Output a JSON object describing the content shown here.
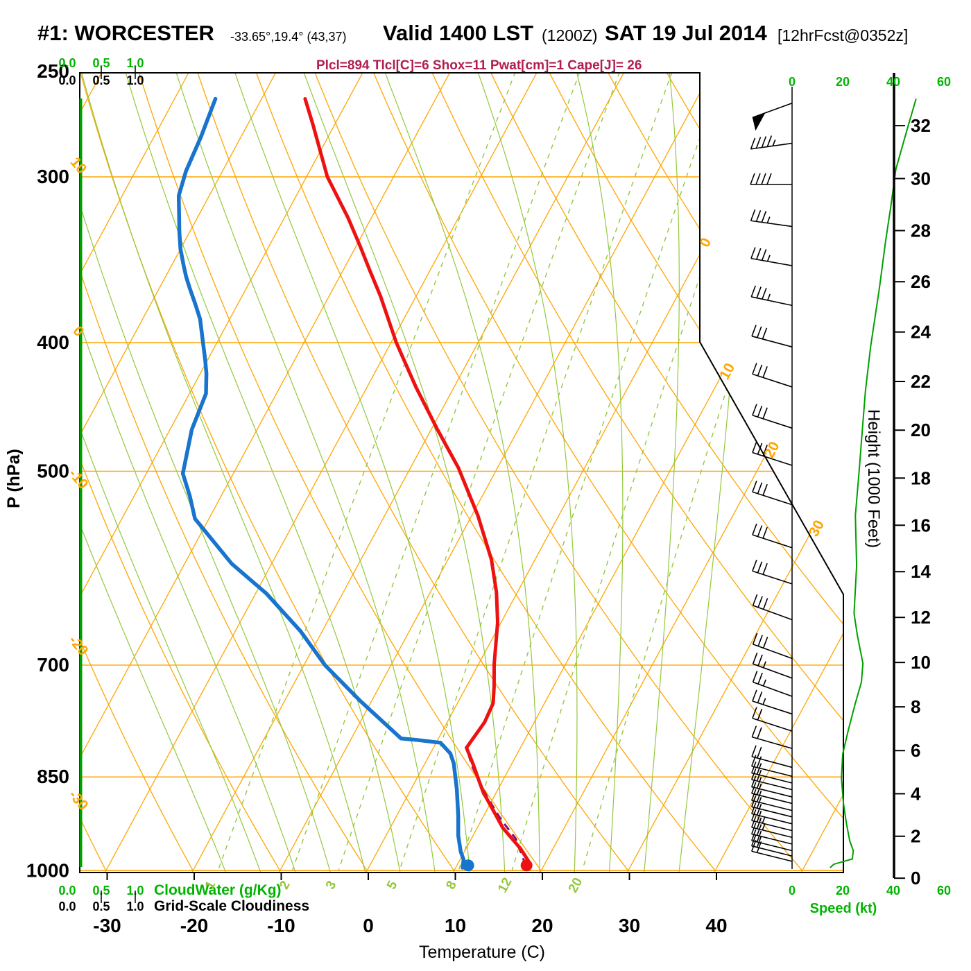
{
  "header": {
    "station": "#1: WORCESTER",
    "coords": "-33.65°,19.4° (43,37)",
    "valid": "Valid 1400 LST",
    "zulu": "(1200Z)",
    "date": "SAT 19 Jul 2014",
    "fcst": "[12hrFcst@0352z]",
    "params": "Plcl=894 Tlcl[C]=6 Shox=11 Pwat[cm]=1 Cape[J]= 26"
  },
  "axes": {
    "pressure": {
      "label": "P (hPa)",
      "ticks": [
        250,
        300,
        400,
        500,
        700,
        850,
        1000
      ]
    },
    "temperature": {
      "label": "Temperature (C)",
      "ticks": [
        -30,
        -20,
        -10,
        0,
        10,
        20,
        30,
        40
      ]
    },
    "height": {
      "label": "Height (1000 Feet)",
      "ticks": [
        0,
        2,
        4,
        6,
        8,
        10,
        12,
        14,
        16,
        18,
        20,
        22,
        24,
        26,
        28,
        30,
        32
      ]
    },
    "speed": {
      "label": "Speed (kt)",
      "ticks": [
        0,
        20,
        40,
        60
      ]
    },
    "cloudwater": {
      "label": "CloudWater (g/Kg)",
      "ticks": [
        "0.0",
        "0.5",
        "1.0"
      ]
    },
    "cloudiness": {
      "label": "Grid-Scale Cloudiness",
      "ticks": [
        "0.0",
        "0.5",
        "1.0"
      ]
    }
  },
  "chart_data": {
    "type": "line",
    "variant": "skew-t-log-p-sounding",
    "pressure_range_hpa": [
      1005,
      250
    ],
    "isotherm_step_c": 10,
    "isotherm_edge_labels": [
      0,
      10,
      20,
      30
    ],
    "dry_adiabat_edge_labels": [
      10,
      0,
      -10,
      -20,
      -30
    ],
    "mixing_ratio_lines_gkg": [
      1,
      2,
      3,
      5,
      8,
      12,
      20
    ],
    "temperature_profile_pT": [
      [
        262,
        -55.0
      ],
      [
        274,
        -52.5
      ],
      [
        300,
        -47.6
      ],
      [
        322,
        -42.7
      ],
      [
        338,
        -39.6
      ],
      [
        353,
        -36.9
      ],
      [
        369,
        -34.1
      ],
      [
        400,
        -29.4
      ],
      [
        432,
        -24.4
      ],
      [
        465,
        -19.3
      ],
      [
        497,
        -14.5
      ],
      [
        540,
        -9.3
      ],
      [
        583,
        -5.0
      ],
      [
        617,
        -2.4
      ],
      [
        650,
        -0.4
      ],
      [
        699,
        1.8
      ],
      [
        727,
        3.2
      ],
      [
        748,
        4.1
      ],
      [
        773,
        4.3
      ],
      [
        808,
        3.8
      ],
      [
        833,
        5.7
      ],
      [
        853,
        7.1
      ],
      [
        873,
        8.5
      ],
      [
        900,
        10.7
      ],
      [
        928,
        12.9
      ],
      [
        963,
        16.3
      ],
      [
        983,
        17.9
      ],
      [
        995,
        18.0
      ]
    ],
    "dewpoint_profile_pTd": [
      [
        262,
        -65.3
      ],
      [
        280,
        -64.6
      ],
      [
        297,
        -64.2
      ],
      [
        310,
        -63.5
      ],
      [
        322,
        -62.1
      ],
      [
        330,
        -61.2
      ],
      [
        340,
        -60.0
      ],
      [
        350,
        -58.6
      ],
      [
        357,
        -57.6
      ],
      [
        364,
        -56.5
      ],
      [
        374,
        -54.9
      ],
      [
        384,
        -53.4
      ],
      [
        400,
        -51.6
      ],
      [
        412,
        -50.3
      ],
      [
        422,
        -49.3
      ],
      [
        437,
        -48.1
      ],
      [
        465,
        -47.5
      ],
      [
        502,
        -45.8
      ],
      [
        522,
        -43.6
      ],
      [
        543,
        -41.6
      ],
      [
        587,
        -34.6
      ],
      [
        618,
        -28.8
      ],
      [
        660,
        -22.5
      ],
      [
        700,
        -17.6
      ],
      [
        745,
        -11.3
      ],
      [
        795,
        -4.3
      ],
      [
        797,
        -2.5
      ],
      [
        801,
        0.5
      ],
      [
        816,
        2.3
      ],
      [
        830,
        3.3
      ],
      [
        869,
        5.3
      ],
      [
        910,
        7.1
      ],
      [
        941,
        8.3
      ],
      [
        968,
        9.6
      ],
      [
        981,
        10.4
      ],
      [
        995,
        10.8
      ]
    ],
    "parcel_path_pT": [
      [
        991,
        17.9
      ],
      [
        946,
        15.1
      ],
      [
        915,
        12.2
      ],
      [
        882,
        9.4
      ],
      [
        855,
        7.2
      ],
      [
        833,
        5.5
      ],
      [
        818,
        4.5
      ]
    ],
    "surface_temperature_c": 18.0,
    "surface_dewpoint_c": 11.3,
    "surface_pressure_hpa": 991,
    "wind_speed_profile_pkt": [
      [
        262,
        49
      ],
      [
        274,
        46
      ],
      [
        296,
        41
      ],
      [
        316,
        39
      ],
      [
        335,
        37
      ],
      [
        364,
        34.5
      ],
      [
        403,
        31
      ],
      [
        435,
        29
      ],
      [
        467,
        27.7
      ],
      [
        500,
        26.5
      ],
      [
        540,
        25
      ],
      [
        589,
        25.5
      ],
      [
        640,
        24.5
      ],
      [
        665,
        25.8
      ],
      [
        698,
        28
      ],
      [
        721,
        27.4
      ],
      [
        749,
        24.9
      ],
      [
        784,
        22.2
      ],
      [
        817,
        20
      ],
      [
        852,
        19.5
      ],
      [
        890,
        20.3
      ],
      [
        922,
        21.5
      ],
      [
        950,
        22.8
      ],
      [
        966,
        24.2
      ],
      [
        980,
        23.8
      ],
      [
        989,
        16.5
      ],
      [
        995,
        15
      ]
    ],
    "wind_barbs_p_kt_ang": [
      [
        264,
        50,
        -20
      ],
      [
        283,
        45,
        -8
      ],
      [
        304,
        40,
        0
      ],
      [
        327,
        35,
        8
      ],
      [
        350,
        35,
        10
      ],
      [
        375,
        35,
        12
      ],
      [
        403,
        30,
        15
      ],
      [
        432,
        30,
        18
      ],
      [
        464,
        30,
        18
      ],
      [
        495,
        30,
        18
      ],
      [
        530,
        30,
        18
      ],
      [
        571,
        30,
        18
      ],
      [
        608,
        30,
        18
      ],
      [
        647,
        30,
        20
      ],
      [
        692,
        30,
        20
      ],
      [
        716,
        25,
        20
      ],
      [
        739,
        25,
        20
      ],
      [
        762,
        25,
        18
      ],
      [
        785,
        20,
        18
      ],
      [
        809,
        20,
        16
      ],
      [
        836,
        20,
        15
      ],
      [
        849,
        20,
        14
      ],
      [
        859,
        20,
        14
      ],
      [
        869,
        21,
        14
      ],
      [
        880,
        21,
        14
      ],
      [
        890,
        21,
        14
      ],
      [
        901,
        22,
        14
      ],
      [
        911,
        22,
        14
      ],
      [
        922,
        22,
        14
      ],
      [
        933,
        23,
        14
      ],
      [
        944,
        23,
        14
      ],
      [
        955,
        22,
        14
      ],
      [
        966,
        21,
        14
      ],
      [
        975,
        21,
        14
      ],
      [
        984,
        20,
        14
      ]
    ],
    "colors": {
      "isotherm_orange": "#FFA500",
      "moist_mixing_green": "#93C83D",
      "profile_green": "#00A000",
      "scale_green": "#00B400",
      "temperature_red": "#EE1111",
      "dewpoint_blue": "#1874CD",
      "parcel_purple": "#7A0F7A",
      "params_maroon": "#AF1E50",
      "black": "#000000"
    }
  }
}
